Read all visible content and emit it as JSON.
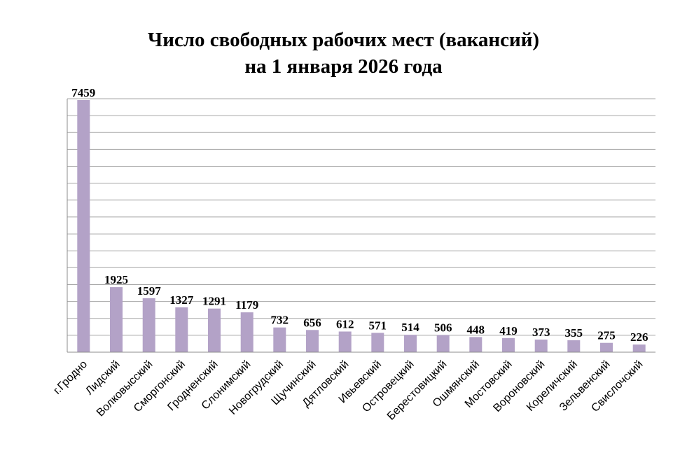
{
  "chart_data": {
    "type": "bar",
    "title_line1": "Число свободных рабочих мест (вакансий)",
    "title_line2": "на 1 января 2026 года",
    "categories": [
      "г.Гродно",
      "Лидский",
      "Волковысский",
      "Сморгонский",
      "Гродненский",
      "Слонимский",
      "Новогрудский",
      "Щучинский",
      "Дятловский",
      "Ивьевский",
      "Островецкий",
      "Берестовицкий",
      "Ошмянский",
      "Мостовский",
      "Вороновский",
      "Кореличский",
      "Зельвенский",
      "Свислочский"
    ],
    "values": [
      7459,
      1925,
      1597,
      1327,
      1291,
      1179,
      732,
      656,
      612,
      571,
      514,
      506,
      448,
      419,
      373,
      355,
      275,
      226
    ],
    "ylim": [
      0,
      7500
    ],
    "grid": true,
    "legend": "none",
    "colors": {
      "bar": "#b3a2c7",
      "grid": "#a6a6a6",
      "axis": "#8c8c8c"
    }
  }
}
